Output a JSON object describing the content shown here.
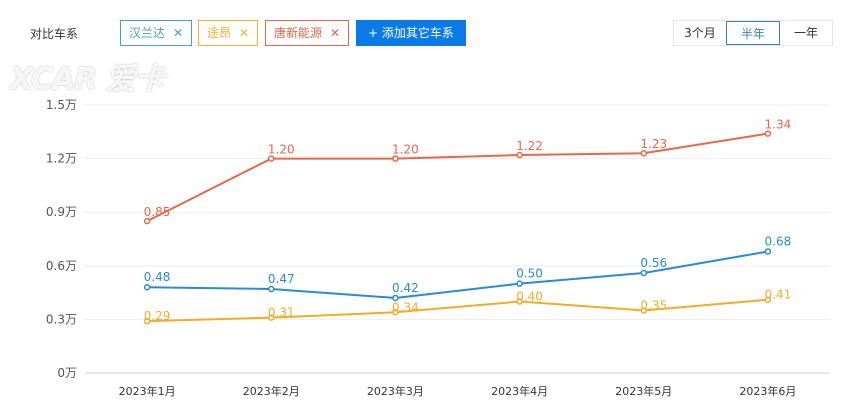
{
  "header": {
    "label": "对比车系",
    "tags": [
      {
        "name": "汉兰达",
        "color": "#4a9ad8"
      },
      {
        "name": "途昂",
        "color": "#f0b23a"
      },
      {
        "name": "唐新能源",
        "color": "#e0674a"
      }
    ],
    "close": "✕",
    "add_label": "+ 添加其它车系",
    "periods": [
      "3个月",
      "半年",
      "一年"
    ],
    "active_period": "半年"
  },
  "watermark": "XCAR 爱卡",
  "chart_data": {
    "type": "line",
    "categories": [
      "2023年1月",
      "2023年2月",
      "2023年3月",
      "2023年4月",
      "2023年5月",
      "2023年6月"
    ],
    "ylim": [
      0,
      1.5
    ],
    "yticks": [
      "0万",
      "0.3万",
      "0.6万",
      "0.9万",
      "1.2万",
      "1.5万"
    ],
    "ytick_values": [
      0,
      0.3,
      0.6,
      0.9,
      1.2,
      1.5
    ],
    "grid": true,
    "series": [
      {
        "name": "唐新能源",
        "color": "#e8674a",
        "values": [
          0.85,
          1.2,
          1.2,
          1.22,
          1.23,
          1.34
        ]
      },
      {
        "name": "汉兰达",
        "color": "#2a8ad8",
        "values": [
          0.48,
          0.47,
          0.42,
          0.5,
          0.56,
          0.68
        ]
      },
      {
        "name": "途昂",
        "color": "#f0ac2a",
        "values": [
          0.29,
          0.31,
          0.34,
          0.4,
          0.35,
          0.41
        ]
      }
    ]
  }
}
